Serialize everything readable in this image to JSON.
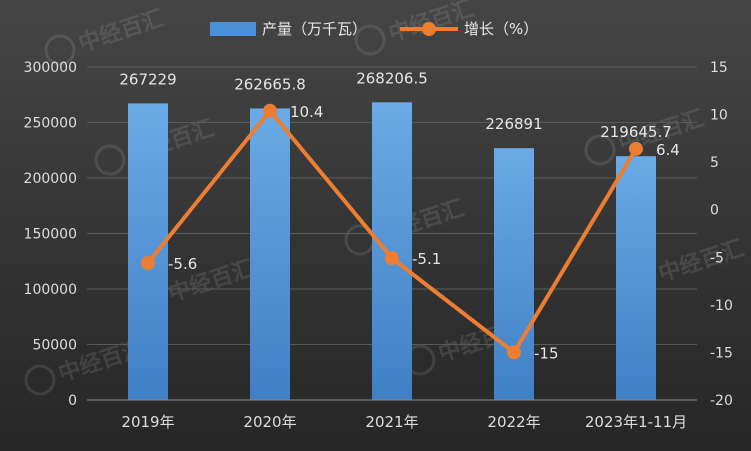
{
  "chart_data": {
    "type": "bar",
    "categories": [
      "2019年",
      "2020年",
      "2021年",
      "2022年",
      "2023年1-11月"
    ],
    "series": [
      {
        "name": "产量（万千瓦）",
        "type": "bar",
        "axis": "left",
        "color": "#4a90d9",
        "values": [
          267229,
          262665.8,
          268206.5,
          226891,
          219645.7
        ],
        "labels": [
          "267229",
          "262665.8",
          "268206.5",
          "226891",
          "219645.7"
        ]
      },
      {
        "name": "增长（%）",
        "type": "line",
        "axis": "right",
        "color": "#ed7d31",
        "values": [
          -5.6,
          10.4,
          -5.1,
          -15,
          6.4
        ],
        "labels": [
          "-5.6",
          "10.4",
          "-5.1",
          "-15",
          "6.4"
        ]
      }
    ],
    "y_left": {
      "range": [
        0,
        300000
      ],
      "ticks": [
        "0",
        "50000",
        "100000",
        "150000",
        "200000",
        "250000",
        "300000"
      ]
    },
    "y_right": {
      "range": [
        -20,
        15
      ],
      "ticks": [
        "-20",
        "-15",
        "-10",
        "-5",
        "0",
        "5",
        "10",
        "15"
      ]
    },
    "grid": true,
    "legend_position": "top-center",
    "watermark_text": "中经百汇"
  }
}
